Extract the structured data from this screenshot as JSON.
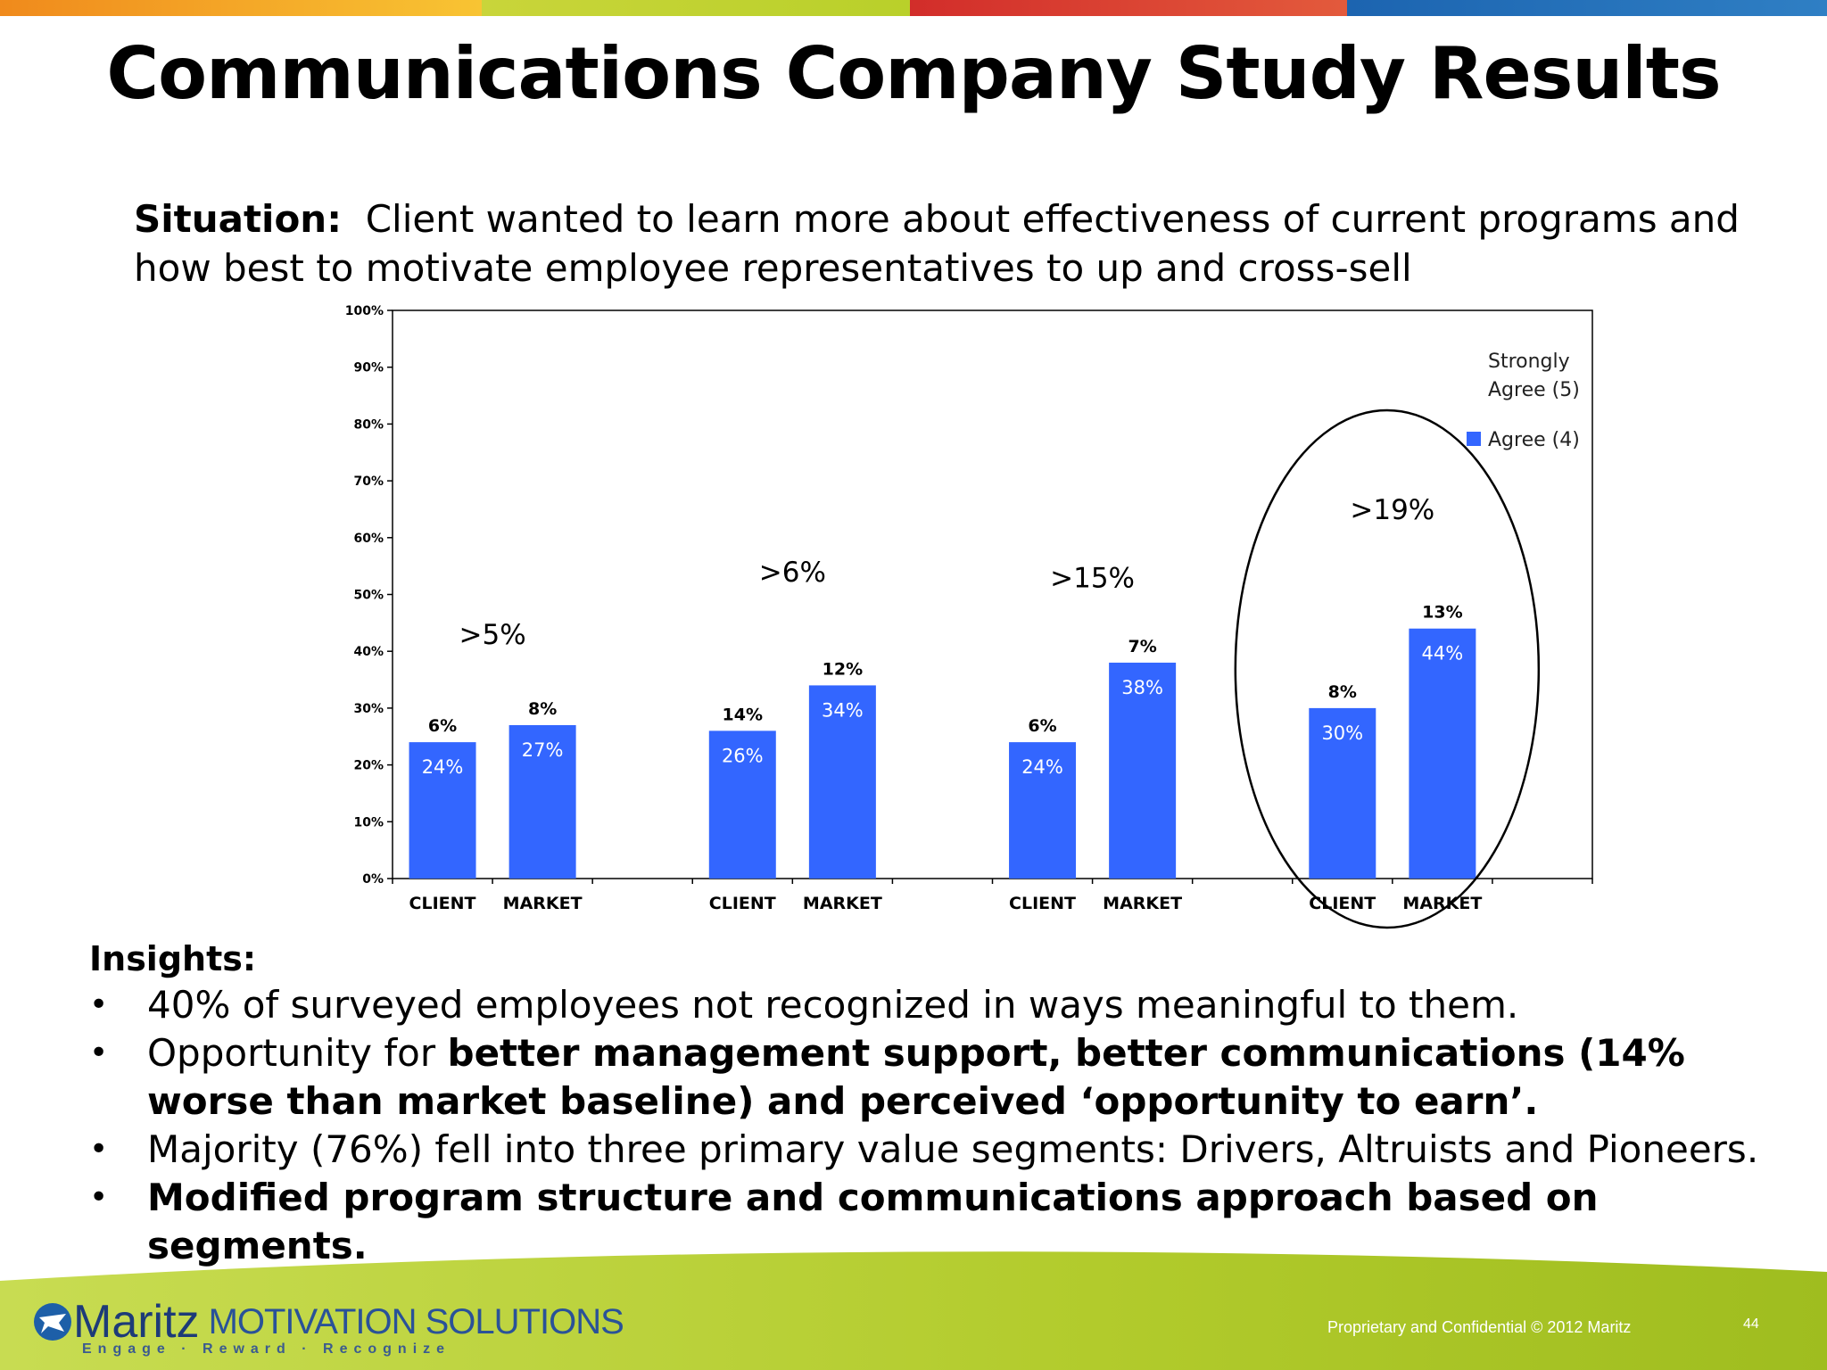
{
  "slide": {
    "title": "Communications Company Study Results",
    "situation_label": "Situation:",
    "situation_text": "Client wanted to learn more about effectiveness of current programs and how best to motivate employee representatives to up and cross-sell",
    "insights_title": "Insights:",
    "insights": [
      {
        "parts": [
          {
            "text": "40% of surveyed employees not recognized in ways meaningful to them.",
            "bold": false
          }
        ]
      },
      {
        "parts": [
          {
            "text": "Opportunity for ",
            "bold": false
          },
          {
            "text": "better management support, better communications (14% worse than market baseline) and perceived ‘opportunity to earn’.",
            "bold": true
          }
        ]
      },
      {
        "parts": [
          {
            "text": "Majority (76%) fell into three primary value segments:  Drivers, Altruists and Pioneers.",
            "bold": false
          }
        ]
      },
      {
        "parts": [
          {
            "text": "Modified program structure and communications approach based on segments.",
            "bold": true
          }
        ]
      }
    ],
    "footer": {
      "logo_word": "Maritz",
      "logo_sub": "MOTIVATION SOLUTIONS",
      "tagline": "Engage · Reward · Recognize",
      "confidential": "Proprietary and Confidential © 2012 Maritz",
      "page_number": "44"
    },
    "colors": {
      "bar": "#3366ff",
      "top_stripe": [
        "#f39c1f",
        "#f7c531",
        "#c6d630",
        "#d7342a",
        "#1e6fb5"
      ],
      "footer_green": "#b5cf2e"
    }
  },
  "chart_data": {
    "type": "bar",
    "stacked": true,
    "categories": [
      "CLIENT",
      "MARKET",
      "CLIENT",
      "MARKET",
      "CLIENT",
      "MARKET",
      "CLIENT",
      "MARKET"
    ],
    "series": [
      {
        "name": "Agree (4)",
        "values": [
          24,
          27,
          26,
          34,
          24,
          38,
          30,
          44
        ],
        "labels": [
          "24%",
          "27%",
          "26%",
          "34%",
          "24%",
          "38%",
          "30%",
          "44%"
        ]
      },
      {
        "name": "Strongly Agree (5)",
        "values": [
          6,
          8,
          14,
          12,
          6,
          7,
          8,
          13
        ],
        "labels": [
          "6%",
          "8%",
          "14%",
          "12%",
          "6%",
          "7%",
          "8%",
          "13%"
        ]
      }
    ],
    "group_gaps": [
      ">5%",
      ">6%",
      ">15%",
      ">19%"
    ],
    "yticks": [
      "0%",
      "10%",
      "20%",
      "30%",
      "40%",
      "50%",
      "60%",
      "70%",
      "80%",
      "90%",
      "100%"
    ],
    "ylim": [
      0,
      100
    ],
    "legend": {
      "position": "top-right",
      "items": [
        "Strongly Agree (5)",
        "Agree (4)"
      ]
    },
    "highlight_group": 3
  }
}
